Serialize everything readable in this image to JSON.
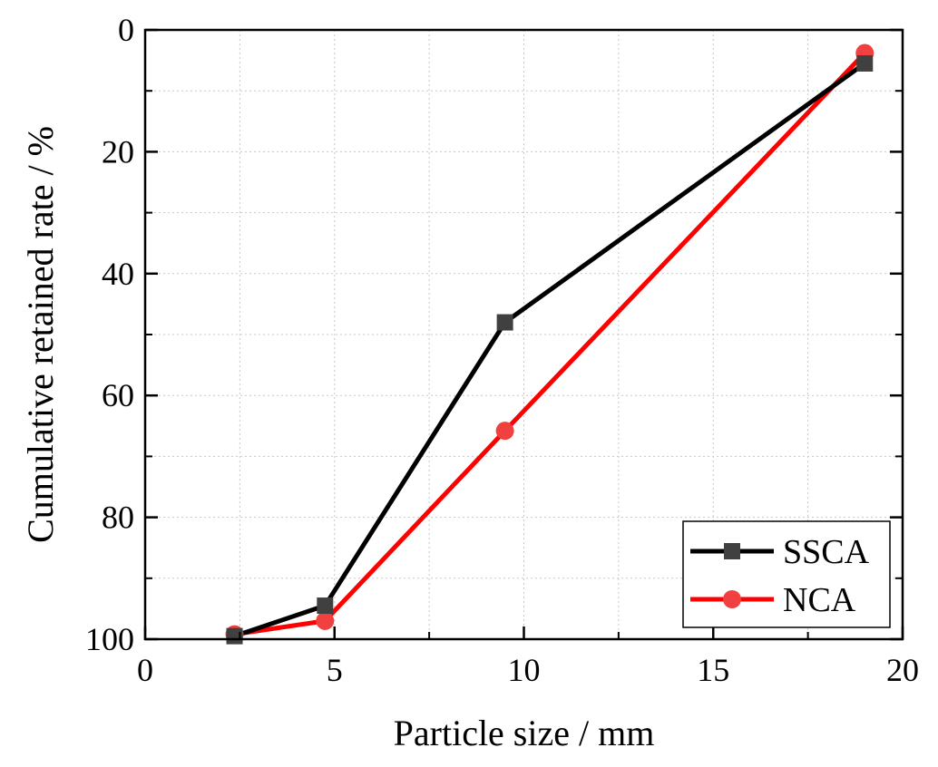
{
  "chart_data": {
    "type": "line",
    "title": "",
    "xlabel": "Particle size / mm",
    "ylabel": "Cumulative retained rate / %",
    "xlim": [
      0,
      20
    ],
    "ylim": [
      0,
      100
    ],
    "y_inverted": true,
    "grid": true,
    "x_ticks": [
      0,
      5,
      10,
      15,
      20
    ],
    "y_ticks": [
      0,
      20,
      40,
      60,
      80,
      100
    ],
    "x_tick_labels": [
      "0",
      "5",
      "10",
      "15",
      "20"
    ],
    "y_tick_labels": [
      "0",
      "20",
      "40",
      "60",
      "80",
      "100"
    ],
    "legend_position": "bottom-right",
    "series": [
      {
        "name": "SSCA",
        "color": "#000000",
        "marker_color": "#404040",
        "marker": "square",
        "x": [
          2.36,
          4.75,
          9.5,
          19
        ],
        "y": [
          99.5,
          94.5,
          48,
          5.5
        ]
      },
      {
        "name": "NCA",
        "color": "#ff0000",
        "marker_color": "#f04040",
        "marker": "circle",
        "x": [
          2.36,
          4.75,
          9.5,
          19
        ],
        "y": [
          99.2,
          97,
          65.8,
          3.8
        ]
      }
    ]
  }
}
